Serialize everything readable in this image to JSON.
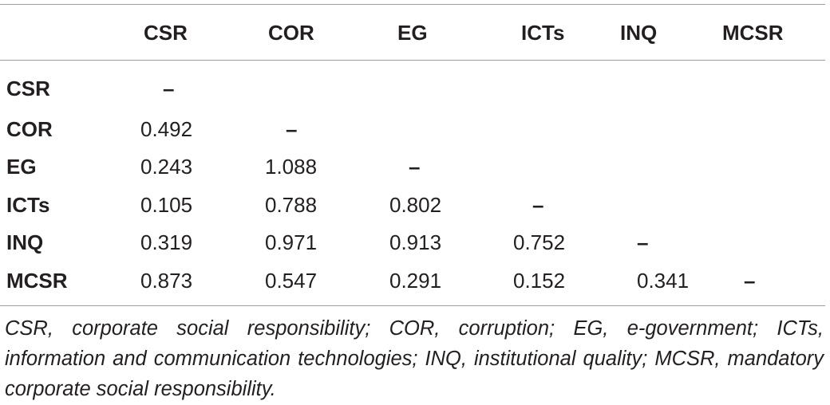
{
  "table": {
    "columns": [
      "",
      "CSR",
      "COR",
      "EG",
      "ICTs",
      "INQ",
      "MCSR"
    ],
    "rows": [
      {
        "label": "CSR",
        "cells": [
          "–",
          "",
          "",
          "",
          "",
          ""
        ]
      },
      {
        "label": "COR",
        "cells": [
          "0.492",
          "–",
          "",
          "",
          "",
          ""
        ]
      },
      {
        "label": "EG",
        "cells": [
          "0.243",
          "1.088",
          "–",
          "",
          "",
          ""
        ]
      },
      {
        "label": "ICTs",
        "cells": [
          "0.105",
          "0.788",
          "0.802",
          "–",
          "",
          ""
        ]
      },
      {
        "label": "INQ",
        "cells": [
          "0.319",
          "0.971",
          "0.913",
          "0.752",
          "–",
          ""
        ]
      },
      {
        "label": "MCSR",
        "cells": [
          "0.873",
          "0.547",
          "0.291",
          "0.152",
          "0.341",
          "–"
        ]
      }
    ]
  },
  "footnote": "CSR, corporate social responsibility; COR, corruption; EG, e-government; ICTs, information and communication technologies; INQ, institutional quality; MCSR, mandatory corporate social responsibility."
}
